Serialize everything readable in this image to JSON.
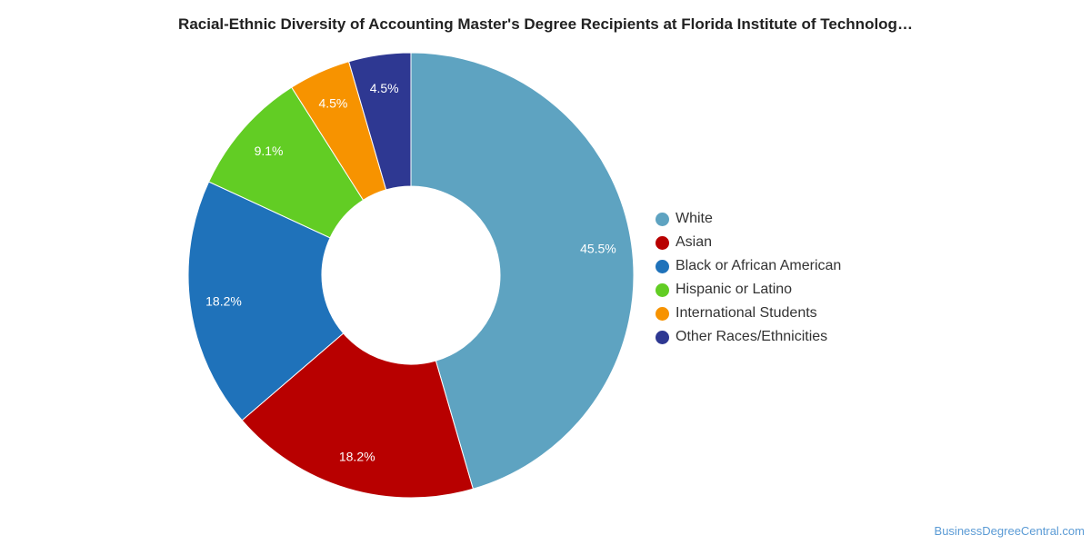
{
  "chart_data": {
    "type": "pie",
    "title": "Racial-Ethnic Diversity of Accounting Master's Degree Recipients at Florida Institute of Technolog…",
    "categories": [
      "White",
      "Asian",
      "Black or African American",
      "Hispanic or Latino",
      "International Students",
      "Other Races/Ethnicities"
    ],
    "values": [
      45.5,
      18.2,
      18.2,
      9.1,
      4.5,
      4.5
    ],
    "labels": [
      "45.5%",
      "18.2%",
      "18.2%",
      "9.1%",
      "4.5%",
      "4.5%"
    ],
    "colors": [
      "#5ea3c1",
      "#b80000",
      "#1f72ba",
      "#62cd24",
      "#f79300",
      "#2e3892"
    ],
    "donut": true,
    "legend_position": "right"
  },
  "credit": "BusinessDegreeCentral.com"
}
